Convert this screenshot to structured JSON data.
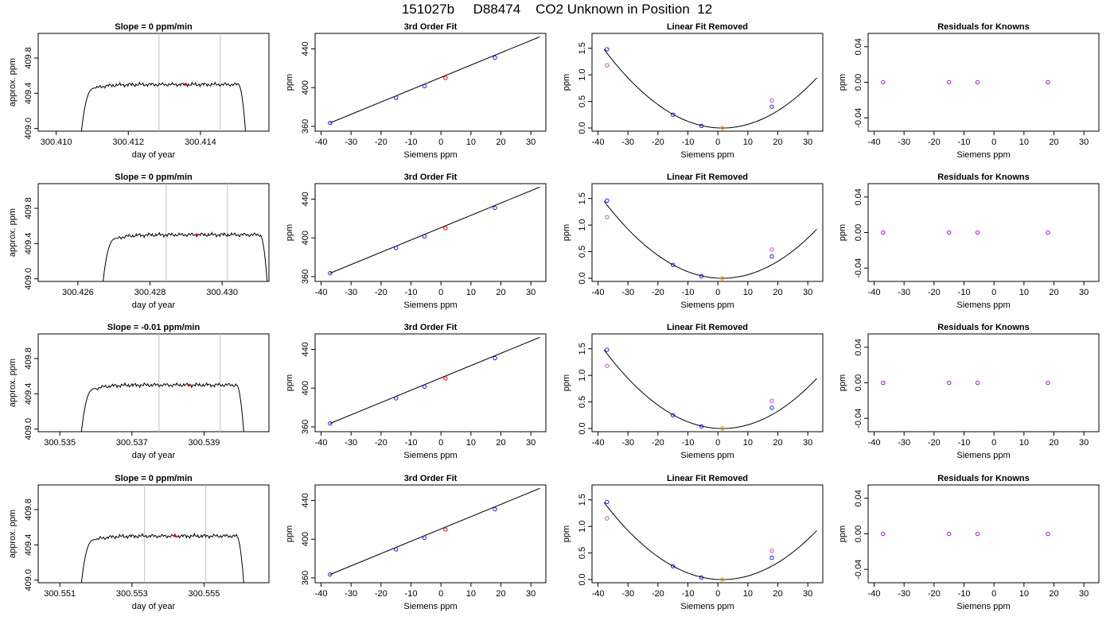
{
  "title": "151027b     D88474    CO2 Unknown in Position  12",
  "colors": {
    "known_point": "#0000ff",
    "unknown_point": "#ff0000",
    "unknown_point_residual": "#ff8c00",
    "linear_fit_point": "#cc33cc",
    "residual_point": "#9900cc",
    "interval_line": "#c0c0c0",
    "curve": "#000000"
  },
  "chart_data": [
    {
      "type": "line",
      "row": 0,
      "title": "Slope =  0  ppm/min",
      "xlabel": "day of year",
      "ylabel": "approx. ppm",
      "xlim": [
        300.4095,
        300.4159
      ],
      "ylim": [
        408.97,
        410.08
      ],
      "xticks": [
        300.41,
        300.412,
        300.414
      ],
      "xtick_labels": [
        "300.410",
        "300.412",
        "300.414"
      ],
      "yticks": [
        409.0,
        409.4,
        409.8
      ],
      "ytick_labels": [
        "409.0",
        "409.4",
        "409.8"
      ],
      "trace": {
        "x_start": 300.4107,
        "x_rise": 300.4111,
        "x_fall": 300.41505,
        "x_end": 300.41525,
        "y_base": 408.97,
        "y_plateau": 409.5
      },
      "interval": [
        300.41285,
        300.41455
      ],
      "marker": {
        "x": 300.4136,
        "y": 409.5
      }
    },
    {
      "type": "scatter",
      "row": 0,
      "title": "3rd Order Fit",
      "xlabel": "Siemens ppm",
      "ylabel": "ppm",
      "xlim": [
        -42,
        35
      ],
      "ylim": [
        355,
        456
      ],
      "xticks": [
        -40,
        -30,
        -20,
        -10,
        0,
        10,
        20,
        30
      ],
      "xtick_labels": [
        "-40",
        "-30",
        "-20",
        "-10",
        "0",
        "10",
        "20",
        "30"
      ],
      "yticks": [
        360,
        400,
        440
      ],
      "ytick_labels": [
        "360",
        "400",
        "440"
      ],
      "fit_line": {
        "x": [
          -37,
          33
        ],
        "y": [
          363.5,
          452.5
        ]
      },
      "known_x": [
        -37,
        -15,
        -5.5,
        18
      ],
      "known_y": [
        363.5,
        389.5,
        401.5,
        431
      ],
      "unknown": {
        "x": 1.5,
        "y": 410
      }
    },
    {
      "type": "scatter",
      "row": 0,
      "title": "Linear Fit Removed",
      "xlabel": "Siemens ppm",
      "ylabel": "ppm",
      "xlim": [
        -42,
        35
      ],
      "ylim": [
        -0.06,
        1.78
      ],
      "xticks": [
        -40,
        -30,
        -20,
        -10,
        0,
        10,
        20,
        30
      ],
      "xtick_labels": [
        "-40",
        "-30",
        "-20",
        "-10",
        "0",
        "10",
        "20",
        "30"
      ],
      "yticks": [
        0,
        0.5,
        1,
        1.5
      ],
      "ytick_labels": [
        "0.0",
        "0.5",
        "1.0",
        "1.5"
      ],
      "curve": {
        "a": 0.00095,
        "x0": 1.5,
        "x_from": -38,
        "x_to": 33
      },
      "known_x": [
        -37,
        -15,
        -5.5,
        18
      ],
      "known_y": [
        1.48,
        0.25,
        0.04,
        0.4
      ],
      "linear_x": [
        -37,
        18
      ],
      "linear_y": [
        1.18,
        0.52
      ],
      "unknown": {
        "x": 1.5,
        "y": 0
      }
    },
    {
      "type": "scatter",
      "row": 0,
      "title": "Residuals for Knowns",
      "xlabel": "Siemens ppm",
      "ylabel": "ppm",
      "xlim": [
        -42,
        35
      ],
      "ylim": [
        -0.055,
        0.055
      ],
      "xticks": [
        -40,
        -30,
        -20,
        -10,
        0,
        10,
        20,
        30
      ],
      "xtick_labels": [
        "-40",
        "-30",
        "-20",
        "-10",
        "0",
        "10",
        "20",
        "30"
      ],
      "yticks": [
        -0.04,
        0,
        0.04
      ],
      "ytick_labels": [
        "-0.04",
        "0.00",
        "0.04"
      ],
      "known_x": [
        -37,
        -15,
        -5.5,
        18
      ],
      "known_y": [
        0,
        0,
        0,
        0
      ]
    },
    {
      "type": "line",
      "row": 1,
      "title": "Slope =  0  ppm/min",
      "xlabel": "day of year",
      "ylabel": "approx. ppm",
      "xlim": [
        300.4249,
        300.4313
      ],
      "ylim": [
        408.97,
        410.08
      ],
      "xticks": [
        300.426,
        300.428,
        300.43
      ],
      "xtick_labels": [
        "300.426",
        "300.428",
        "300.430"
      ],
      "yticks": [
        409.0,
        409.4,
        409.8
      ],
      "ytick_labels": [
        "409.0",
        "409.4",
        "409.8"
      ],
      "trace": {
        "x_start": 300.4267,
        "x_rise": 300.4271,
        "x_fall": 300.43105,
        "x_end": 300.43125,
        "y_base": 408.97,
        "y_plateau": 409.5
      },
      "interval": [
        300.42845,
        300.43015
      ],
      "marker": {
        "x": 300.4293,
        "y": 409.5
      }
    },
    {
      "type": "scatter",
      "row": 1,
      "title": "3rd Order Fit",
      "xlabel": "Siemens ppm",
      "ylabel": "ppm",
      "xlim": [
        -42,
        35
      ],
      "ylim": [
        355,
        456
      ],
      "xticks": [
        -40,
        -30,
        -20,
        -10,
        0,
        10,
        20,
        30
      ],
      "xtick_labels": [
        "-40",
        "-30",
        "-20",
        "-10",
        "0",
        "10",
        "20",
        "30"
      ],
      "yticks": [
        360,
        400,
        440
      ],
      "ytick_labels": [
        "360",
        "400",
        "440"
      ],
      "fit_line": {
        "x": [
          -37,
          33
        ],
        "y": [
          363.5,
          452.5
        ]
      },
      "known_x": [
        -37,
        -15,
        -5.5,
        18
      ],
      "known_y": [
        363.5,
        389.5,
        401.5,
        431
      ],
      "unknown": {
        "x": 1.5,
        "y": 410
      }
    },
    {
      "type": "scatter",
      "row": 1,
      "title": "Linear Fit Removed",
      "xlabel": "Siemens ppm",
      "ylabel": "ppm",
      "xlim": [
        -42,
        35
      ],
      "ylim": [
        -0.06,
        1.78
      ],
      "xticks": [
        -40,
        -30,
        -20,
        -10,
        0,
        10,
        20,
        30
      ],
      "xtick_labels": [
        "-40",
        "-30",
        "-20",
        "-10",
        "0",
        "10",
        "20",
        "30"
      ],
      "yticks": [
        0,
        0.5,
        1,
        1.5
      ],
      "ytick_labels": [
        "0.0",
        "0.5",
        "1.0",
        "1.5"
      ],
      "curve": {
        "a": 0.00093,
        "x0": 1.5,
        "x_from": -38,
        "x_to": 33
      },
      "known_x": [
        -37,
        -15,
        -5.5,
        18
      ],
      "known_y": [
        1.46,
        0.25,
        0.04,
        0.41
      ],
      "linear_x": [
        -37,
        18
      ],
      "linear_y": [
        1.15,
        0.54
      ],
      "unknown": {
        "x": 1.5,
        "y": 0
      }
    },
    {
      "type": "scatter",
      "row": 1,
      "title": "Residuals for Knowns",
      "xlabel": "Siemens ppm",
      "ylabel": "ppm",
      "xlim": [
        -42,
        35
      ],
      "ylim": [
        -0.055,
        0.055
      ],
      "xticks": [
        -40,
        -30,
        -20,
        -10,
        0,
        10,
        20,
        30
      ],
      "xtick_labels": [
        "-40",
        "-30",
        "-20",
        "-10",
        "0",
        "10",
        "20",
        "30"
      ],
      "yticks": [
        -0.04,
        0,
        0.04
      ],
      "ytick_labels": [
        "-0.04",
        "0.00",
        "0.04"
      ],
      "known_x": [
        -37,
        -15,
        -5.5,
        18
      ],
      "known_y": [
        0,
        0,
        0,
        0
      ]
    },
    {
      "type": "line",
      "row": 2,
      "title": "Slope =  -0.01  ppm/min",
      "xlabel": "day of year",
      "ylabel": "approx. ppm",
      "xlim": [
        300.5344,
        300.5408
      ],
      "ylim": [
        408.97,
        410.08
      ],
      "xticks": [
        300.535,
        300.537,
        300.539
      ],
      "xtick_labels": [
        "300.535",
        "300.537",
        "300.539"
      ],
      "yticks": [
        409.0,
        409.4,
        409.8
      ],
      "ytick_labels": [
        "409.0",
        "409.4",
        "409.8"
      ],
      "trace": {
        "x_start": 300.5356,
        "x_rise": 300.536,
        "x_fall": 300.5399,
        "x_end": 300.5401,
        "y_base": 408.97,
        "y_plateau": 409.5
      },
      "interval": [
        300.53775,
        300.53945
      ],
      "marker": {
        "x": 300.5386,
        "y": 409.5
      }
    },
    {
      "type": "scatter",
      "row": 2,
      "title": "3rd Order Fit",
      "xlabel": "Siemens ppm",
      "ylabel": "ppm",
      "xlim": [
        -42,
        35
      ],
      "ylim": [
        355,
        456
      ],
      "xticks": [
        -40,
        -30,
        -20,
        -10,
        0,
        10,
        20,
        30
      ],
      "xtick_labels": [
        "-40",
        "-30",
        "-20",
        "-10",
        "0",
        "10",
        "20",
        "30"
      ],
      "yticks": [
        360,
        400,
        440
      ],
      "ytick_labels": [
        "360",
        "400",
        "440"
      ],
      "fit_line": {
        "x": [
          -37,
          33
        ],
        "y": [
          363.5,
          452.5
        ]
      },
      "known_x": [
        -37,
        -15,
        -5.5,
        18
      ],
      "known_y": [
        363.5,
        389.5,
        401.5,
        431
      ],
      "unknown": {
        "x": 1.5,
        "y": 410
      }
    },
    {
      "type": "scatter",
      "row": 2,
      "title": "Linear Fit Removed",
      "xlabel": "Siemens ppm",
      "ylabel": "ppm",
      "xlim": [
        -42,
        35
      ],
      "ylim": [
        -0.06,
        1.78
      ],
      "xticks": [
        -40,
        -30,
        -20,
        -10,
        0,
        10,
        20,
        30
      ],
      "xtick_labels": [
        "-40",
        "-30",
        "-20",
        "-10",
        "0",
        "10",
        "20",
        "30"
      ],
      "yticks": [
        0,
        0.5,
        1,
        1.5
      ],
      "ytick_labels": [
        "0.0",
        "0.5",
        "1.0",
        "1.5"
      ],
      "curve": {
        "a": 0.00095,
        "x0": 1.5,
        "x_from": -38,
        "x_to": 33
      },
      "known_x": [
        -37,
        -15,
        -5.5,
        18
      ],
      "known_y": [
        1.48,
        0.25,
        0.04,
        0.39
      ],
      "linear_x": [
        -37,
        18
      ],
      "linear_y": [
        1.18,
        0.52
      ],
      "unknown": {
        "x": 1.5,
        "y": 0
      }
    },
    {
      "type": "scatter",
      "row": 2,
      "title": "Residuals for Knowns",
      "xlabel": "Siemens ppm",
      "ylabel": "ppm",
      "xlim": [
        -42,
        35
      ],
      "ylim": [
        -0.055,
        0.055
      ],
      "xticks": [
        -40,
        -30,
        -20,
        -10,
        0,
        10,
        20,
        30
      ],
      "xtick_labels": [
        "-40",
        "-30",
        "-20",
        "-10",
        "0",
        "10",
        "20",
        "30"
      ],
      "yticks": [
        -0.04,
        0,
        0.04
      ],
      "ytick_labels": [
        "-0.04",
        "0.00",
        "0.04"
      ],
      "known_x": [
        -37,
        -15,
        -5.5,
        18
      ],
      "known_y": [
        0,
        0,
        0,
        0
      ]
    },
    {
      "type": "line",
      "row": 3,
      "title": "Slope =  0  ppm/min",
      "xlabel": "day of year",
      "ylabel": "approx. ppm",
      "xlim": [
        300.5504,
        300.5568
      ],
      "ylim": [
        408.97,
        410.08
      ],
      "xticks": [
        300.551,
        300.553,
        300.555
      ],
      "xtick_labels": [
        "300.551",
        "300.553",
        "300.555"
      ],
      "yticks": [
        409.0,
        409.4,
        409.8
      ],
      "ytick_labels": [
        "409.0",
        "409.4",
        "409.8"
      ],
      "trace": {
        "x_start": 300.5516,
        "x_rise": 300.552,
        "x_fall": 300.5559,
        "x_end": 300.5561,
        "y_base": 408.97,
        "y_plateau": 409.5
      },
      "interval": [
        300.55335,
        300.55505
      ],
      "marker": {
        "x": 300.5542,
        "y": 409.5
      }
    },
    {
      "type": "scatter",
      "row": 3,
      "title": "3rd Order Fit",
      "xlabel": "Siemens ppm",
      "ylabel": "ppm",
      "xlim": [
        -42,
        35
      ],
      "ylim": [
        355,
        456
      ],
      "xticks": [
        -40,
        -30,
        -20,
        -10,
        0,
        10,
        20,
        30
      ],
      "xtick_labels": [
        "-40",
        "-30",
        "-20",
        "-10",
        "0",
        "10",
        "20",
        "30"
      ],
      "yticks": [
        360,
        400,
        440
      ],
      "ytick_labels": [
        "360",
        "400",
        "440"
      ],
      "fit_line": {
        "x": [
          -37,
          33
        ],
        "y": [
          363.5,
          452.5
        ]
      },
      "known_x": [
        -37,
        -15,
        -5.5,
        18
      ],
      "known_y": [
        363.5,
        389.5,
        401.5,
        431
      ],
      "unknown": {
        "x": 1.5,
        "y": 410
      }
    },
    {
      "type": "scatter",
      "row": 3,
      "title": "Linear Fit Removed",
      "xlabel": "Siemens ppm",
      "ylabel": "ppm",
      "xlim": [
        -42,
        35
      ],
      "ylim": [
        -0.06,
        1.78
      ],
      "xticks": [
        -40,
        -30,
        -20,
        -10,
        0,
        10,
        20,
        30
      ],
      "xtick_labels": [
        "-40",
        "-30",
        "-20",
        "-10",
        "0",
        "10",
        "20",
        "30"
      ],
      "yticks": [
        0,
        0.5,
        1,
        1.5
      ],
      "ytick_labels": [
        "0.0",
        "0.5",
        "1.0",
        "1.5"
      ],
      "curve": {
        "a": 0.00093,
        "x0": 1.5,
        "x_from": -38,
        "x_to": 33
      },
      "known_x": [
        -37,
        -15,
        -5.5,
        18
      ],
      "known_y": [
        1.46,
        0.25,
        0.04,
        0.41
      ],
      "linear_x": [
        -37,
        18
      ],
      "linear_y": [
        1.15,
        0.54
      ],
      "unknown": {
        "x": 1.5,
        "y": 0
      }
    },
    {
      "type": "scatter",
      "row": 3,
      "title": "Residuals for Knowns",
      "xlabel": "Siemens ppm",
      "ylabel": "ppm",
      "xlim": [
        -42,
        35
      ],
      "ylim": [
        -0.055,
        0.055
      ],
      "xticks": [
        -40,
        -30,
        -20,
        -10,
        0,
        10,
        20,
        30
      ],
      "xtick_labels": [
        "-40",
        "-30",
        "-20",
        "-10",
        "0",
        "10",
        "20",
        "30"
      ],
      "yticks": [
        -0.04,
        0,
        0.04
      ],
      "ytick_labels": [
        "-0.04",
        "0.00",
        "0.04"
      ],
      "known_x": [
        -37,
        -15,
        -5.5,
        18
      ],
      "known_y": [
        0,
        0,
        0,
        0
      ]
    }
  ]
}
